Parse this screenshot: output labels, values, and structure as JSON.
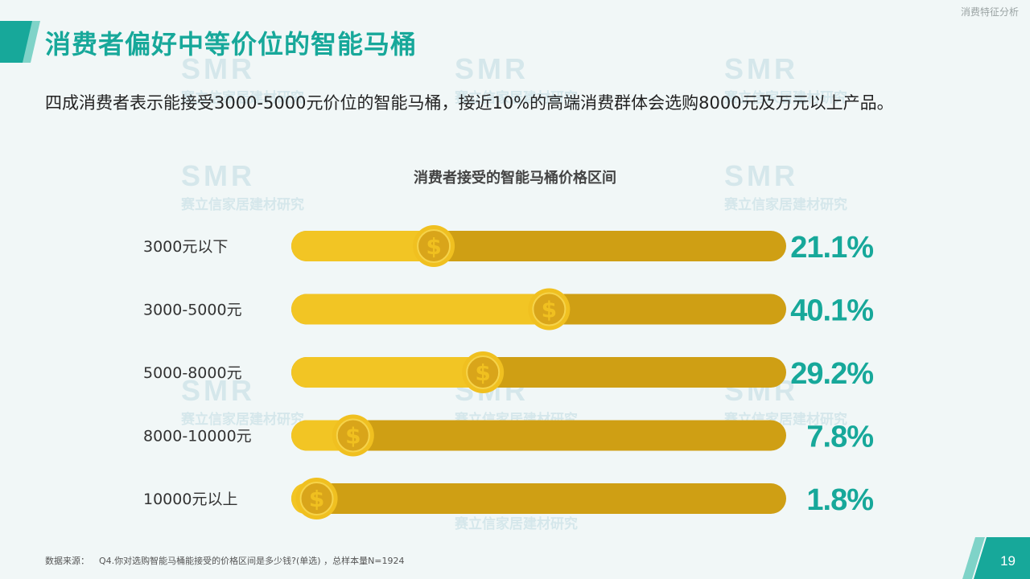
{
  "header": {
    "section_label": "消费特征分析",
    "title": "消费者偏好中等价位的智能马桶",
    "summary": "四成消费者表示能接受3000-5000元价位的智能马桶，接近10%的高端消费群体会选购8000元及万元以上产品。"
  },
  "watermark": {
    "logo": "SMR",
    "text": "赛立信家居建材研究"
  },
  "chart_data": {
    "type": "bar",
    "title": "消费者接受的智能马桶价格区间",
    "categories": [
      "3000元以下",
      "3000-5000元",
      "5000-8000元",
      "8000-10000元",
      "10000元以上"
    ],
    "values": [
      21.1,
      40.1,
      29.2,
      7.8,
      1.8
    ],
    "value_labels": [
      "21.1%",
      "40.1%",
      "29.2%",
      "7.8%",
      "1.8%"
    ],
    "unit": "%",
    "xlim": [
      0,
      100
    ],
    "marker_icon": "dollar-coin-icon",
    "colors": {
      "track": "#cf9f14",
      "fill": "#f2c524",
      "coin_outer": "#f0c020",
      "coin_inner": "#d9a51a",
      "value_text": "#17a89a",
      "category_text": "#333333"
    }
  },
  "footer": {
    "source_label": "数据来源：",
    "source_text": "Q4.你对选购智能马桶能接受的价格区间是多少钱?(单选) ，总样本量N=1924",
    "page_number": "19"
  },
  "theme": {
    "accent": "#17a89a",
    "accent_light": "#7fd3c8",
    "background": "#f1f7f7"
  }
}
